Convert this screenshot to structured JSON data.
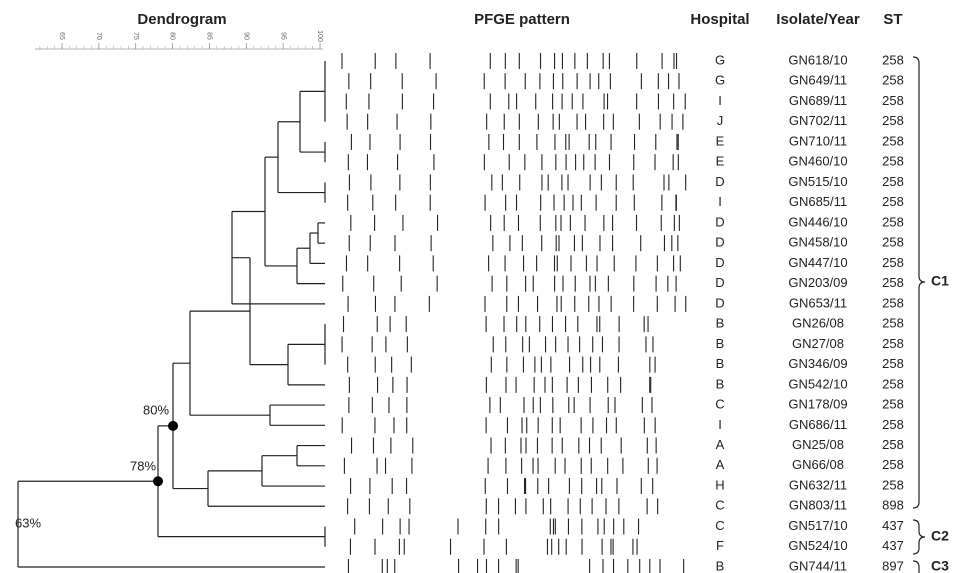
{
  "headers": {
    "dendrogram": "Dendrogram",
    "pfge": "PFGE pattern",
    "hospital": "Hospital",
    "isolate": "Isolate/Year",
    "st": "ST"
  },
  "ruler": {
    "ticks": [
      65,
      70,
      75,
      80,
      85,
      90,
      95,
      100
    ]
  },
  "node_labels": [
    "63%",
    "78%",
    "80%"
  ],
  "clusters": [
    "C1",
    "C2",
    "C3"
  ],
  "rows": [
    [
      "G",
      "GN618/10",
      258
    ],
    [
      "G",
      "GN649/11",
      258
    ],
    [
      "I",
      "GN689/11",
      258
    ],
    [
      "J",
      "GN702/11",
      258
    ],
    [
      "E",
      "GN710/11",
      258
    ],
    [
      "E",
      "GN460/10",
      258
    ],
    [
      "D",
      "GN515/10",
      258
    ],
    [
      "I",
      "GN685/11",
      258
    ],
    [
      "D",
      "GN446/10",
      258
    ],
    [
      "D",
      "GN458/10",
      258
    ],
    [
      "D",
      "GN447/10",
      258
    ],
    [
      "D",
      "GN203/09",
      258
    ],
    [
      "D",
      "GN653/11",
      258
    ],
    [
      "B",
      "GN26/08",
      258
    ],
    [
      "B",
      "GN27/08",
      258
    ],
    [
      "B",
      "GN346/09",
      258
    ],
    [
      "B",
      "GN542/10",
      258
    ],
    [
      "C",
      "GN178/09",
      258
    ],
    [
      "I",
      "GN686/11",
      258
    ],
    [
      "A",
      "GN25/08",
      258
    ],
    [
      "A",
      "GN66/08",
      258
    ],
    [
      "H",
      "GN632/11",
      258
    ],
    [
      "C",
      "GN803/11",
      898
    ],
    [
      "C",
      "GN517/10",
      437
    ],
    [
      "F",
      "GN524/10",
      437
    ],
    [
      "B",
      "GN744/11",
      897
    ]
  ]
}
